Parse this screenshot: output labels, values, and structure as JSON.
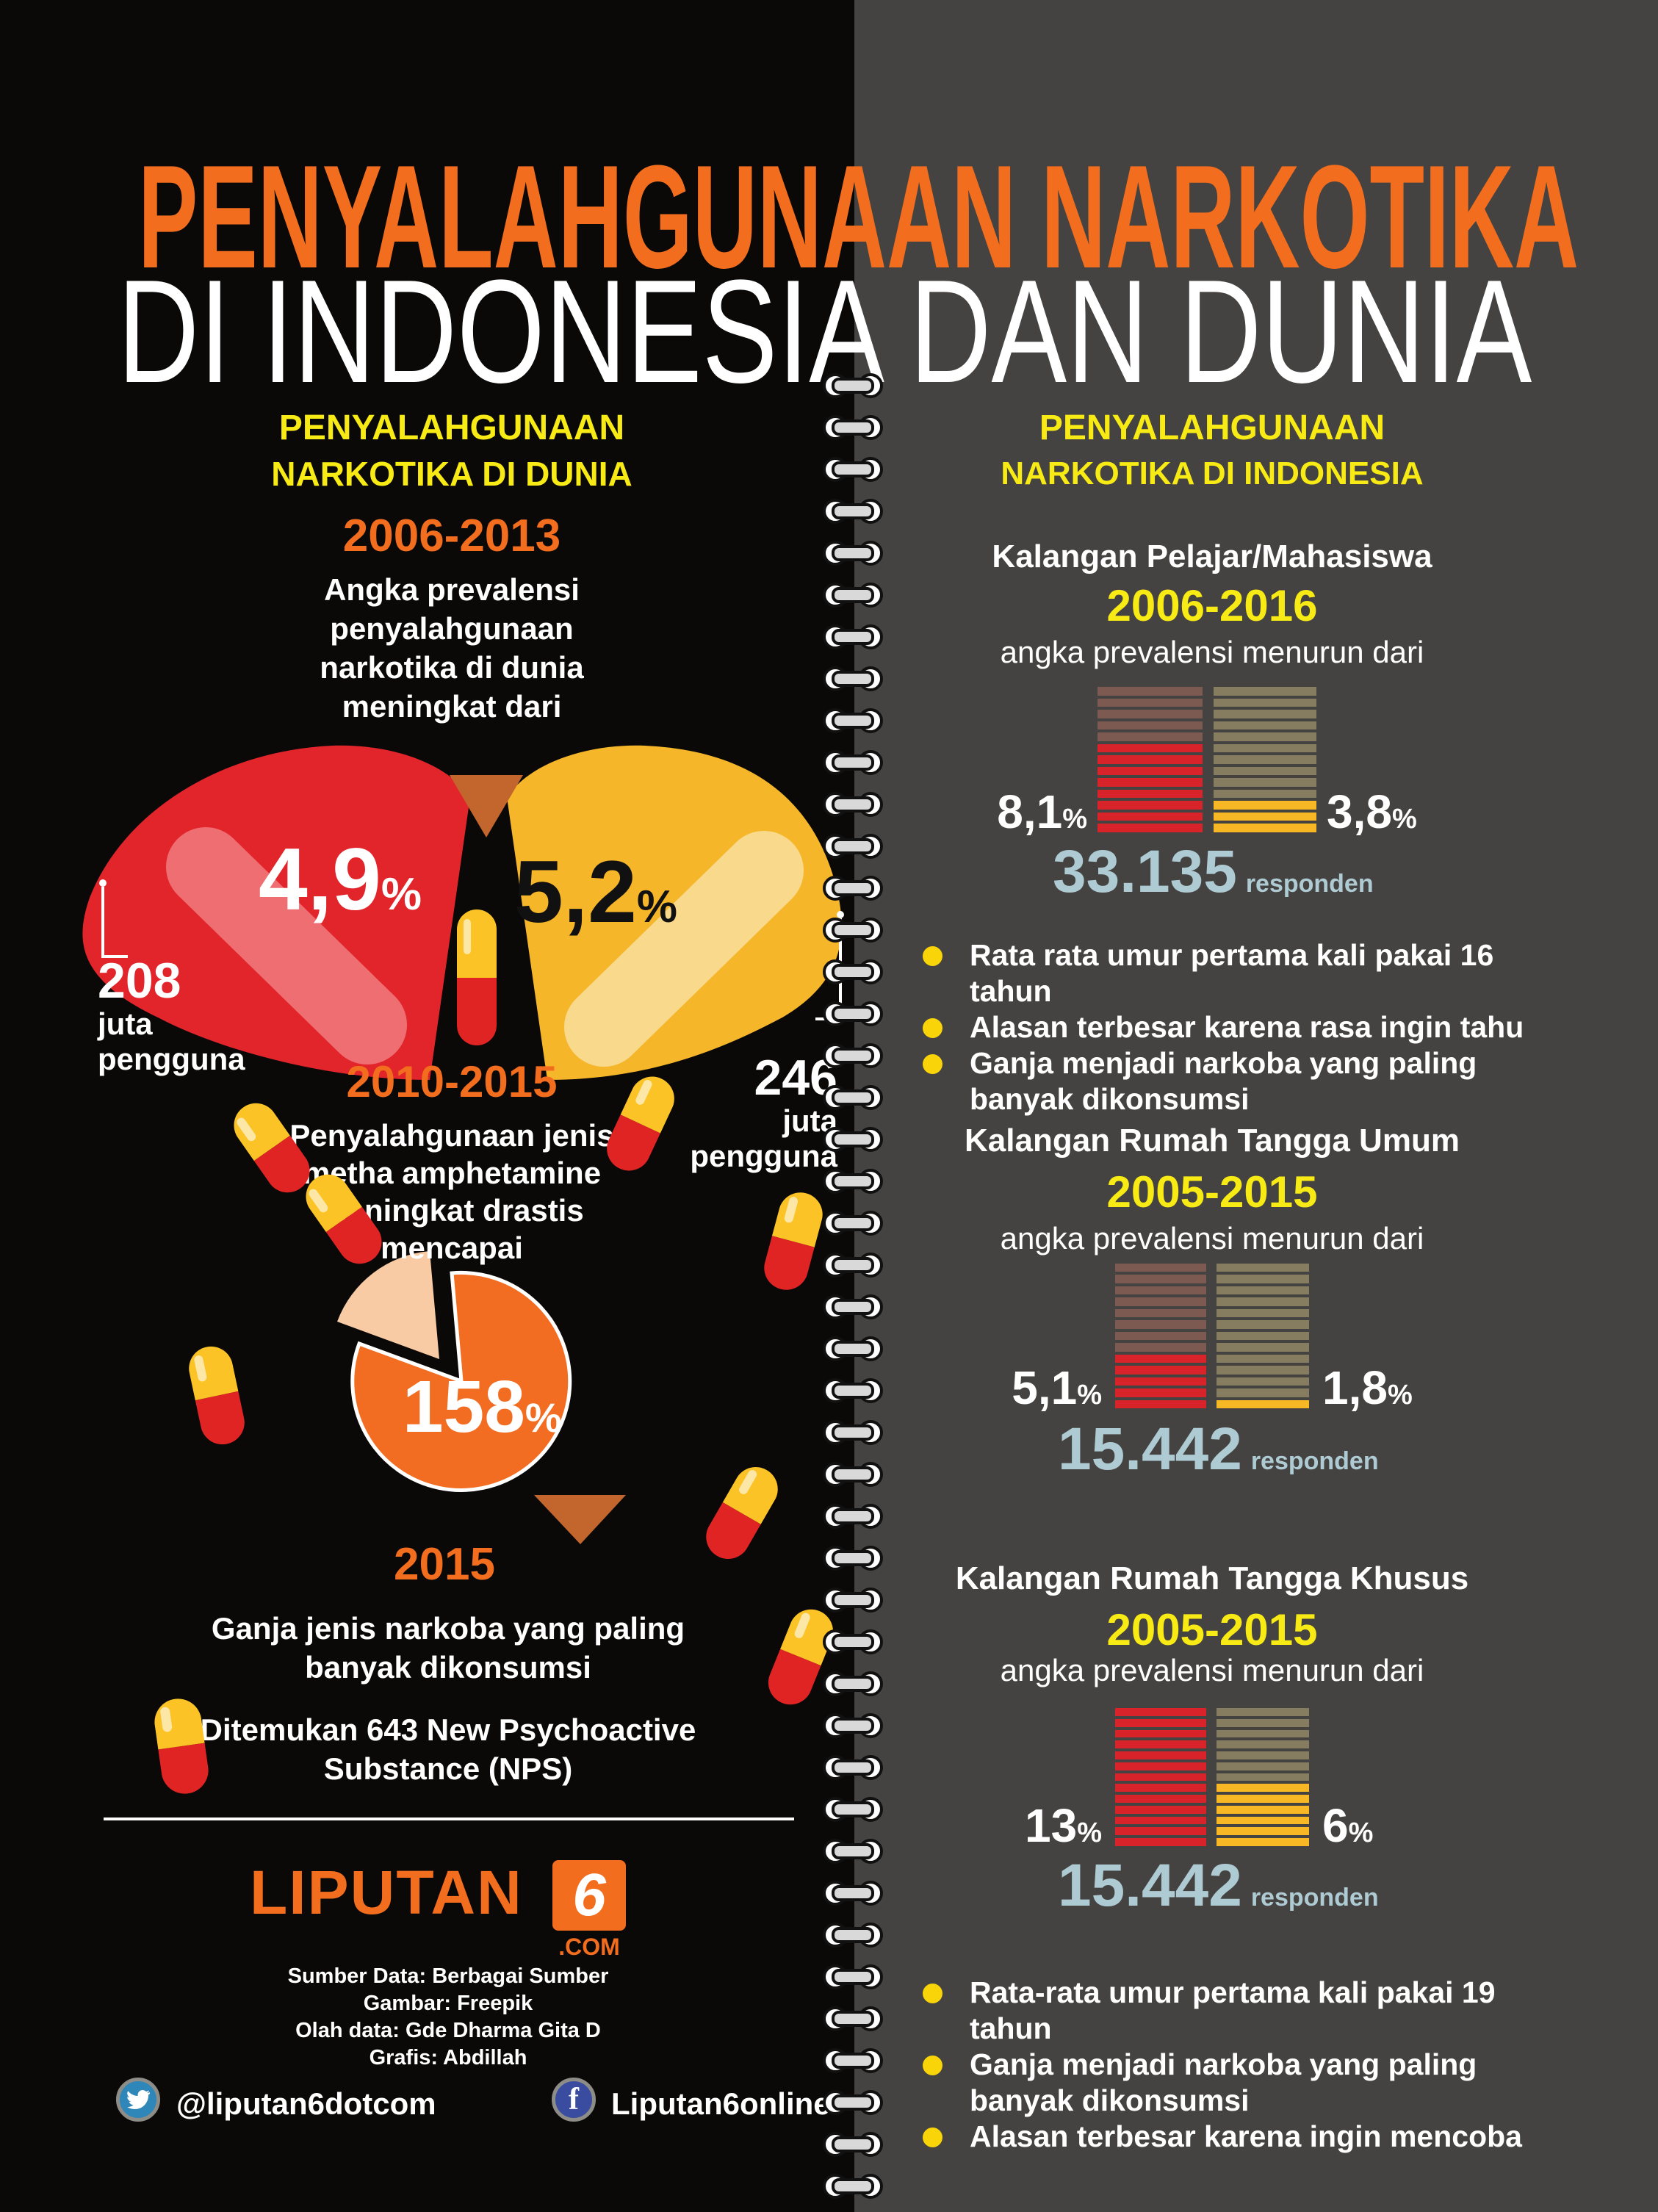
{
  "title": {
    "line1": "PENYALAHGUNAAN NARKOTIKA",
    "line2": "DI INDONESIA DAN DUNIA"
  },
  "left": {
    "header1": "PENYALAHGUNAAN",
    "header2": "NARKOTIKA DI DUNIA",
    "period1": "2006-2013",
    "intro_lines": [
      "Angka prevalensi",
      "penyalahgunaan",
      "narkotika di dunia",
      "meningkat dari"
    ],
    "world": {
      "from_num": "4,9",
      "to_num": "5,2",
      "sign": "%",
      "from_users": "208",
      "to_users": "246",
      "unit1": "juta",
      "unit2": "pengguna"
    },
    "period2": "2010-2015",
    "meth_lines": [
      "Penyalahgunaan jenis",
      "metha amphetamine",
      "meningkat drastis",
      "mencapai"
    ],
    "meth_num": "158",
    "meth_sign": "%",
    "period3": "2015",
    "ganja_lines": [
      "Ganja jenis narkoba yang paling",
      "banyak dikonsumsi"
    ],
    "nps_lines": [
      "Ditemukan 643 New Psychoactive",
      "Substance (NPS)"
    ]
  },
  "right": {
    "header1": "PENYALAHGUNAAN",
    "header2": "NARKOTIKA DI INDONESIA",
    "sections": [
      {
        "title": "Kalangan Pelajar/Mahasiswa",
        "period": "2006-2016",
        "subtitle": "angka prevalensi menurun dari",
        "from_num": "8,1",
        "to_num": "3,8",
        "sign": "%",
        "respondents": "33.135",
        "respondents_label": "responden"
      },
      {
        "title": "Kalangan Rumah Tangga Umum",
        "period": "2005-2015",
        "subtitle": "angka prevalensi menurun dari",
        "from_num": "5,1",
        "to_num": "1,8",
        "sign": "%",
        "respondents": "15.442",
        "respondents_label": "responden"
      },
      {
        "title": "Kalangan Rumah Tangga Khusus",
        "period": "2005-2015",
        "subtitle": "angka prevalensi menurun dari",
        "from_num": "13",
        "to_num": "6",
        "sign": "%",
        "respondents": "15.442",
        "respondents_label": "responden"
      }
    ],
    "bullets1": [
      "Rata rata umur pertama kali pakai 16 tahun",
      "Alasan terbesar karena rasa ingin tahu",
      "Ganja menjadi narkoba yang paling banyak dikonsumsi"
    ],
    "bullets2": [
      "Rata-rata umur pertama kali pakai 19 tahun",
      "Ganja menjadi narkoba yang paling banyak dikonsumsi",
      "Alasan terbesar karena ingin mencoba"
    ]
  },
  "footer": {
    "brand": "LIPUTAN",
    "brand_number": "6",
    "brand_domain": ".COM",
    "credits": [
      "Sumber Data: Berbagai Sumber",
      "Gambar: Freepik",
      "Olah data: Gde Dharma Gita D",
      "Grafis: Abdillah"
    ],
    "twitter": "@liputan6dotcom",
    "facebook": "Liputan6online"
  },
  "colors": {
    "accent_orange": "#f26d1d",
    "accent_yellow": "#f8ea15",
    "heart_red": "#e2242b",
    "heart_red_light": "#ee6e72",
    "heart_yellow": "#f6b62a",
    "heart_yellow_light": "#f9d98c",
    "pie_orange": "#f26d21",
    "pie_slice": "#f8cba4",
    "triangle_brown": "#c2662d",
    "respondents_blue": "#aecbd3",
    "bar_active_red": "#d8232a",
    "bar_faded_red": "#7c5a52",
    "bar_active_yellow": "#f8b825",
    "bar_faded_olive": "#867c60",
    "right_bg": "#454341",
    "left_bg": "#0a0908"
  },
  "chart_data": [
    {
      "type": "bar",
      "title": "Kalangan Pelajar/Mahasiswa",
      "period": "2006-2016",
      "subtitle": "angka prevalensi menurun dari",
      "categories": [
        "2006",
        "2016"
      ],
      "values": [
        8.1,
        3.8
      ],
      "labels": [
        "8,1%",
        "3,8%"
      ],
      "total_segments": 13,
      "from_segments": 8,
      "to_segments": 3,
      "respondents": "33.135 responden"
    },
    {
      "type": "bar",
      "title": "Kalangan Rumah Tangga Umum",
      "period": "2005-2015",
      "subtitle": "angka prevalensi menurun dari",
      "categories": [
        "2005",
        "2015"
      ],
      "values": [
        5.1,
        1.8
      ],
      "labels": [
        "5,1%",
        "1,8%"
      ],
      "total_segments": 13,
      "from_segments": 5,
      "to_segments": 1,
      "respondents": "15.442 responden"
    },
    {
      "type": "bar",
      "title": "Kalangan Rumah Tangga Khusus",
      "period": "2005-2015",
      "subtitle": "angka prevalensi menurun dari",
      "categories": [
        "2005",
        "2015"
      ],
      "values": [
        13,
        6
      ],
      "labels": [
        "13%",
        "6%"
      ],
      "total_segments": 13,
      "from_segments": 13,
      "to_segments": 6,
      "respondents": "15.442 responden"
    },
    {
      "type": "pie",
      "title": "Penyalahgunaan jenis metha amphetamine meningkat drastis mencapai (2010-2015)",
      "values": [
        158
      ],
      "label": "158%"
    },
    {
      "type": "comparison",
      "title": "Angka prevalensi penyalahgunaan narkotika di dunia 2006-2013",
      "values": [
        4.9,
        5.2
      ],
      "labels": [
        "4,9%",
        "5,2%"
      ],
      "users": [
        "208 juta pengguna",
        "246 juta pengguna"
      ]
    }
  ]
}
